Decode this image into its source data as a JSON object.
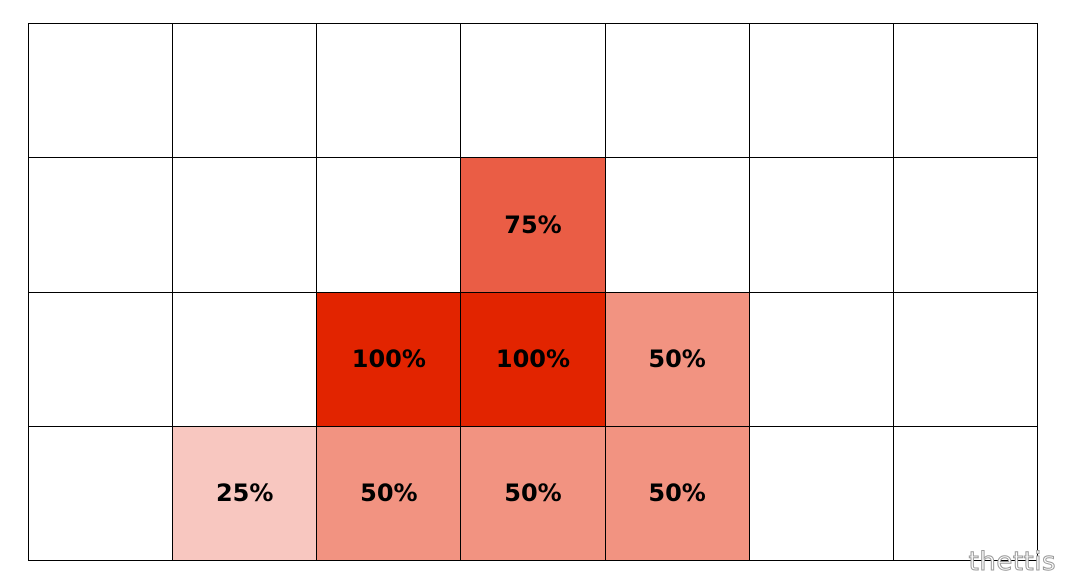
{
  "grid": {
    "rows": [
      [
        {
          "label": "",
          "color": ""
        },
        {
          "label": "",
          "color": ""
        },
        {
          "label": "",
          "color": ""
        },
        {
          "label": "",
          "color": ""
        },
        {
          "label": "",
          "color": ""
        },
        {
          "label": "",
          "color": ""
        },
        {
          "label": "",
          "color": ""
        }
      ],
      [
        {
          "label": "",
          "color": ""
        },
        {
          "label": "",
          "color": ""
        },
        {
          "label": "",
          "color": ""
        },
        {
          "label": "75%",
          "color": "#ea5d45"
        },
        {
          "label": "",
          "color": ""
        },
        {
          "label": "",
          "color": ""
        },
        {
          "label": "",
          "color": ""
        }
      ],
      [
        {
          "label": "",
          "color": ""
        },
        {
          "label": "",
          "color": ""
        },
        {
          "label": "100%",
          "color": "#e22400"
        },
        {
          "label": "100%",
          "color": "#e22400"
        },
        {
          "label": "50%",
          "color": "#f29381"
        },
        {
          "label": "",
          "color": ""
        },
        {
          "label": "",
          "color": ""
        }
      ],
      [
        {
          "label": "",
          "color": ""
        },
        {
          "label": "25%",
          "color": "#f8c7c0"
        },
        {
          "label": "50%",
          "color": "#f29381"
        },
        {
          "label": "50%",
          "color": "#f29381"
        },
        {
          "label": "50%",
          "color": "#f29381"
        },
        {
          "label": "",
          "color": ""
        },
        {
          "label": "",
          "color": ""
        }
      ]
    ]
  },
  "watermark": "thettis"
}
